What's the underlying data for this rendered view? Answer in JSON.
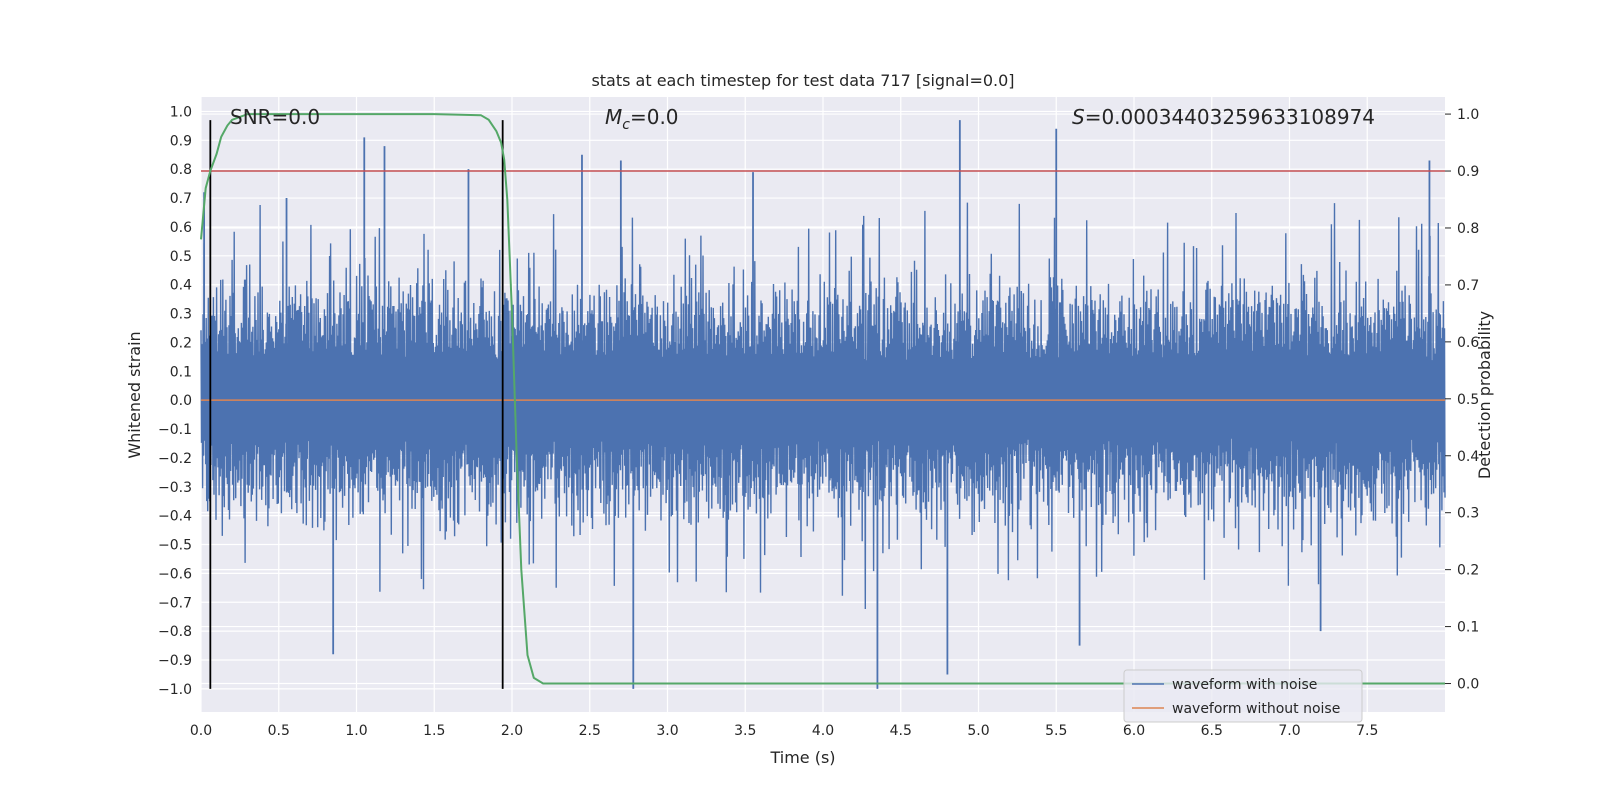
{
  "chart_data": {
    "type": "line",
    "title": "stats at each timestep for test data 717 [signal=0.0]",
    "xlabel": "Time (s)",
    "ylabel_left": "Whitened strain",
    "ylabel_right": "Detection probability",
    "xlim": [
      0.0,
      8.0
    ],
    "ylim_left": [
      -1.08,
      1.05
    ],
    "ylim_right": [
      -0.05,
      1.03
    ],
    "x_ticks": [
      0.0,
      0.5,
      1.0,
      1.5,
      2.0,
      2.5,
      3.0,
      3.5,
      4.0,
      4.5,
      5.0,
      5.5,
      6.0,
      6.5,
      7.0,
      7.5
    ],
    "x_tick_labels": [
      "0.0",
      "0.5",
      "1.0",
      "1.5",
      "2.0",
      "2.5",
      "3.0",
      "3.5",
      "4.0",
      "4.5",
      "5.0",
      "5.5",
      "6.0",
      "6.5",
      "7.0",
      "7.5"
    ],
    "y_ticks_left": [
      1.0,
      0.9,
      0.8,
      0.7,
      0.6,
      0.5,
      0.4,
      0.3,
      0.2,
      0.1,
      0.0,
      -0.1,
      -0.2,
      -0.3,
      -0.4,
      -0.5,
      -0.6,
      -0.7,
      -0.8,
      -0.9,
      -1.0
    ],
    "y_tick_labels_left": [
      "1.0",
      "0.9",
      "0.8",
      "0.7",
      "0.6",
      "0.5",
      "0.4",
      "0.3",
      "0.2",
      "0.1",
      "0.0",
      "−0.1",
      "−0.2",
      "−0.3",
      "−0.4",
      "−0.5",
      "−0.6",
      "−0.7",
      "−0.8",
      "−0.9",
      "−1.0"
    ],
    "y_ticks_right": [
      1.0,
      0.9,
      0.8,
      0.7,
      0.6,
      0.5,
      0.4,
      0.3,
      0.2,
      0.1,
      0.0
    ],
    "y_tick_labels_right": [
      "1.0",
      "0.9",
      "0.8",
      "0.7",
      "0.6",
      "0.5",
      "0.4",
      "0.3",
      "0.2",
      "0.1",
      "0.0"
    ],
    "grid": true,
    "annotations": {
      "snr": "SNR=0.0",
      "mc_symbol": "M",
      "mc_sub": "c",
      "mc_value": "=0.0",
      "s_symbol": "S",
      "s_value": "=0.00034403259633108974"
    },
    "series": [
      {
        "name": "waveform with noise",
        "axis": "left",
        "color": "#4c72b0",
        "style": "noise",
        "typical_envelope": [
          -0.38,
          0.38
        ],
        "peaks": [
          {
            "x": 0.02,
            "y": 0.72
          },
          {
            "x": 0.55,
            "y": 0.7
          },
          {
            "x": 1.05,
            "y": 0.91
          },
          {
            "x": 1.18,
            "y": 0.88
          },
          {
            "x": 1.72,
            "y": 0.8
          },
          {
            "x": 2.45,
            "y": 0.85
          },
          {
            "x": 2.7,
            "y": 0.83
          },
          {
            "x": 3.55,
            "y": 0.79
          },
          {
            "x": 4.88,
            "y": 0.97
          },
          {
            "x": 5.5,
            "y": 0.94
          },
          {
            "x": 7.9,
            "y": 0.83
          }
        ],
        "troughs": [
          {
            "x": 0.85,
            "y": -0.88
          },
          {
            "x": 2.78,
            "y": -1.0
          },
          {
            "x": 4.35,
            "y": -1.0
          },
          {
            "x": 4.8,
            "y": -0.95
          },
          {
            "x": 5.65,
            "y": -0.85
          },
          {
            "x": 7.2,
            "y": -0.8
          }
        ]
      },
      {
        "name": "waveform without noise",
        "axis": "left",
        "color": "#dd8452",
        "x": [
          0.0,
          8.0
        ],
        "y": [
          0.0,
          0.0
        ]
      },
      {
        "name": "",
        "axis": "right",
        "color": "#55a868",
        "x": [
          0.0,
          0.03,
          0.06,
          0.1,
          0.13,
          0.17,
          0.2,
          0.25,
          0.3,
          0.4,
          0.6,
          1.0,
          1.5,
          1.8,
          1.85,
          1.9,
          1.93,
          1.95,
          1.97,
          2.0,
          2.03,
          2.06,
          2.1,
          2.14,
          2.2,
          2.5,
          8.0
        ],
        "y": [
          0.78,
          0.87,
          0.9,
          0.93,
          0.96,
          0.98,
          0.99,
          0.995,
          1.0,
          1.0,
          1.0,
          1.0,
          1.0,
          0.998,
          0.99,
          0.97,
          0.95,
          0.92,
          0.85,
          0.65,
          0.4,
          0.2,
          0.05,
          0.01,
          0.0,
          0.0,
          0.0
        ]
      },
      {
        "name": "",
        "axis": "right",
        "color": "#c44e52",
        "x": [
          0.0,
          8.0
        ],
        "y": [
          0.9,
          0.9
        ]
      }
    ],
    "vlines": [
      {
        "x": 0.06,
        "ymin": -1.0,
        "ymax": 0.97,
        "color": "#000000"
      },
      {
        "x": 1.94,
        "ymin": -1.0,
        "ymax": 0.97,
        "color": "#000000"
      }
    ],
    "legend": {
      "placement": "lower-right",
      "entries": [
        {
          "label": "waveform with noise",
          "color": "#4c72b0"
        },
        {
          "label": "waveform without noise",
          "color": "#dd8452"
        }
      ]
    },
    "colors": {
      "plot_background": "#eaeaf2",
      "grid": "#ffffff"
    }
  }
}
